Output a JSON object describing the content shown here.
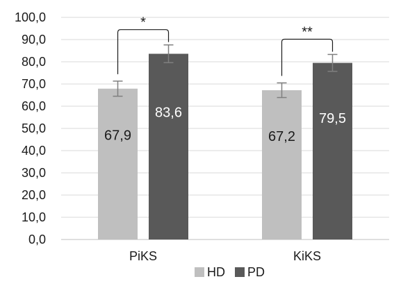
{
  "chart_data": {
    "type": "bar",
    "title": "",
    "xlabel": "",
    "ylabel": "",
    "ylim": [
      0,
      100
    ],
    "ytick_step": 10,
    "ytick_labels": [
      "0,0",
      "10,0",
      "20,0",
      "30,0",
      "40,0",
      "50,0",
      "60,0",
      "70,0",
      "80,0",
      "90,0",
      "100,0"
    ],
    "grid": true,
    "legend_position": "bottom",
    "categories": [
      "PiKS",
      "KiKS"
    ],
    "series": [
      {
        "name": "HD",
        "color": "#bfbfbf",
        "label_color": "#1a1a1a",
        "values": [
          67.9,
          67.2
        ],
        "value_labels": [
          "67,9",
          "67,2"
        ],
        "error": [
          3.4,
          3.3
        ]
      },
      {
        "name": "PD",
        "color": "#595959",
        "label_color": "#ffffff",
        "values": [
          83.6,
          79.5
        ],
        "value_labels": [
          "83,6",
          "79,5"
        ],
        "error": [
          4.0,
          3.8
        ]
      }
    ],
    "significance": [
      {
        "category": "PiKS",
        "label": "*"
      },
      {
        "category": "KiKS",
        "label": "**"
      }
    ]
  }
}
